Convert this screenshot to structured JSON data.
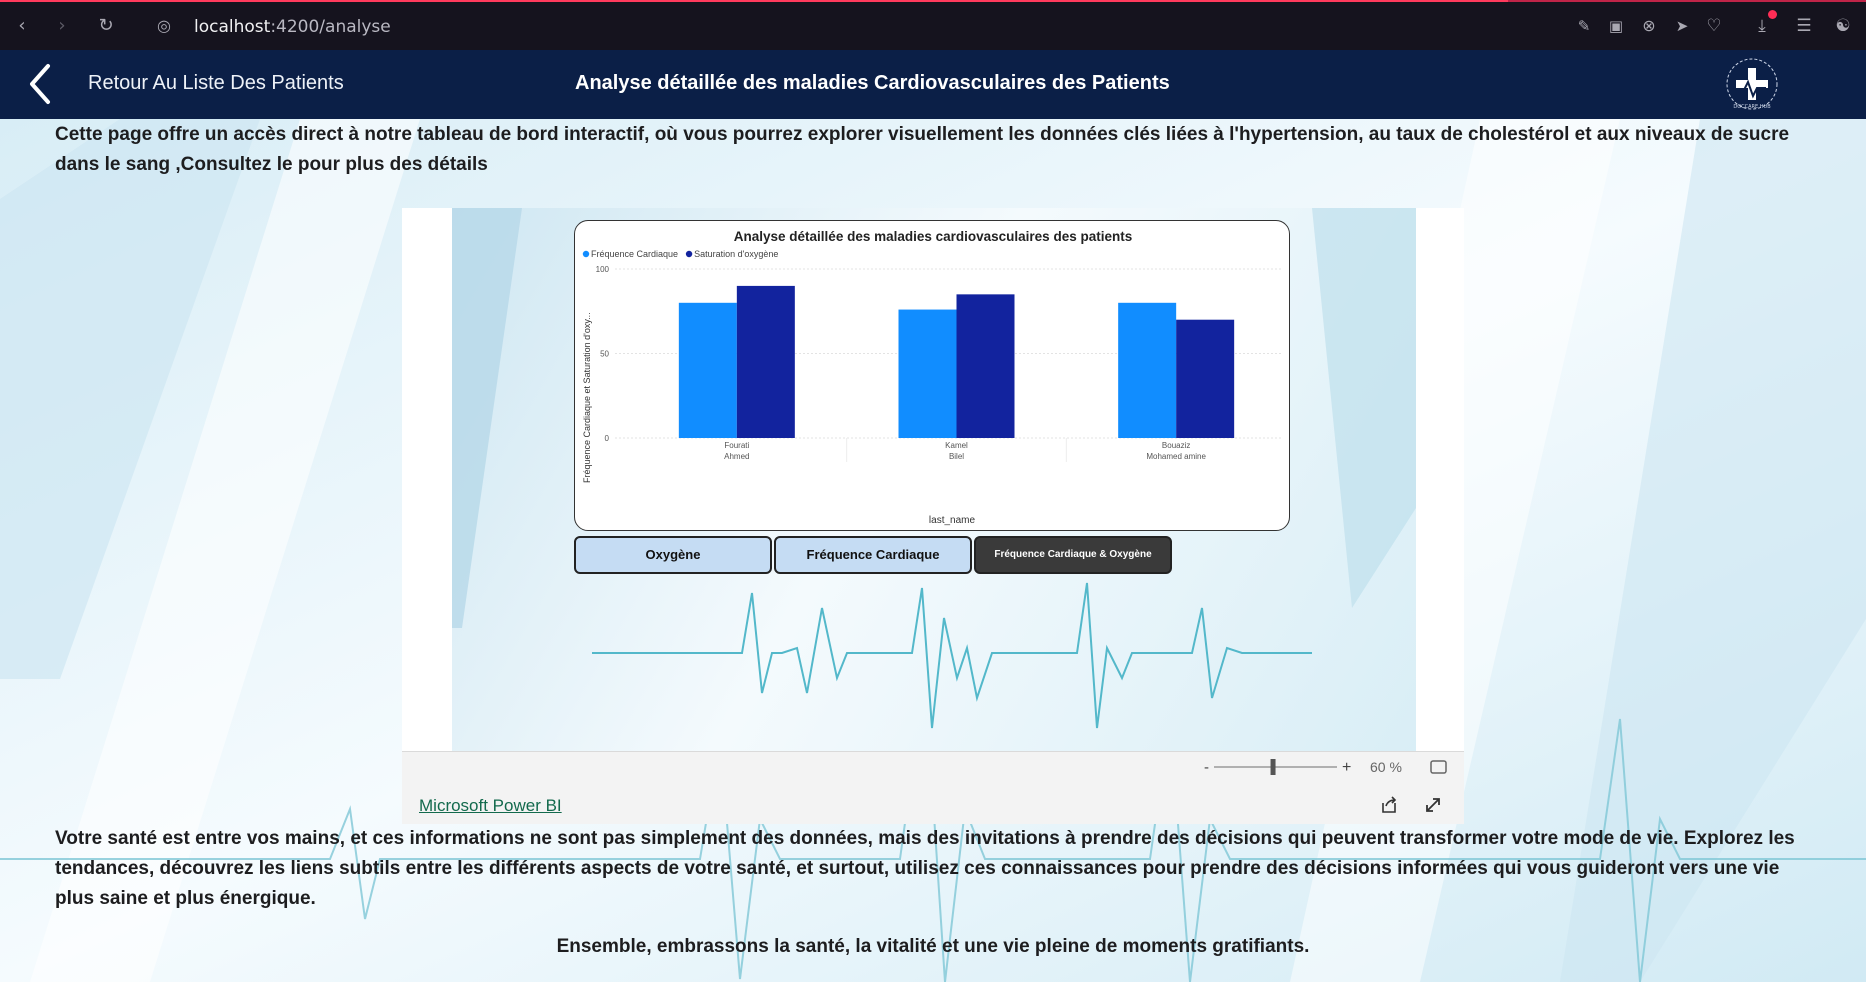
{
  "browser": {
    "url_host": "localhost",
    "url_path": ":4200/analyse",
    "icons": [
      "back-icon",
      "forward-icon",
      "reload-icon",
      "site-info-icon",
      "screenshot-edit-icon",
      "camera-icon",
      "close-circle-icon",
      "send-icon",
      "heart-icon",
      "download-icon",
      "settings-icon",
      "accessibility-icon"
    ]
  },
  "header": {
    "back_label": "Retour Au Liste Des Patients",
    "title": "Analyse détaillée des maladies Cardiovasculaires des Patients",
    "logo_text": "DOCCARE HUB"
  },
  "content": {
    "intro": "Cette page offre un accès direct à notre tableau de bord interactif, où vous pourrez explorer visuellement les données clés liées à l'hypertension, au taux de cholestérol et aux niveaux de sucre dans le sang ,Consultez le pour plus des détails",
    "outro": "Votre santé est entre vos mains, et ces informations ne sont pas simplement des données, mais des invitations à prendre des décisions qui peuvent transformer votre mode de vie. Explorez les tendances, découvrez les liens subtils entre les différents aspects de votre santé, et surtout, utilisez ces connaissances pour prendre des décisions informées qui vous guideront vers une vie plus saine et plus énergique.",
    "closing": "Ensemble, embrassons la santé, la vitalité et une vie pleine de moments gratifiants."
  },
  "chart_data": {
    "type": "bar",
    "title": "Analyse détaillée des maladies cardiovasculaires des patients",
    "xlabel": "last_name",
    "ylabel": "Fréquence Cardiaque et Saturation d'oxy...",
    "ylim": [
      0,
      100
    ],
    "yticks": [
      0,
      50,
      100
    ],
    "categories": [
      [
        "Fourati",
        "Ahmed"
      ],
      [
        "Kamel",
        "Bilel"
      ],
      [
        "Bouaziz",
        "Mohamed amine"
      ]
    ],
    "series": [
      {
        "name": "Fréquence Cardiaque",
        "color": "#118dff",
        "values": [
          80,
          76,
          80
        ]
      },
      {
        "name": "Saturation d'oxygène",
        "color": "#12239e",
        "values": [
          90,
          85,
          70
        ]
      }
    ],
    "legend_position": "top-left",
    "grid": true
  },
  "report_buttons": [
    {
      "label": "Oxygène",
      "active": false
    },
    {
      "label": "Fréquence Cardiaque",
      "active": false
    },
    {
      "label": "Fréquence Cardiaque & Oxygène",
      "active": true
    }
  ],
  "embed_footer": {
    "zoom_minus": "-",
    "zoom_plus": "+",
    "zoom_level": "60 %",
    "zoom_fraction": 0.48,
    "link_label": "Microsoft Power BI"
  }
}
